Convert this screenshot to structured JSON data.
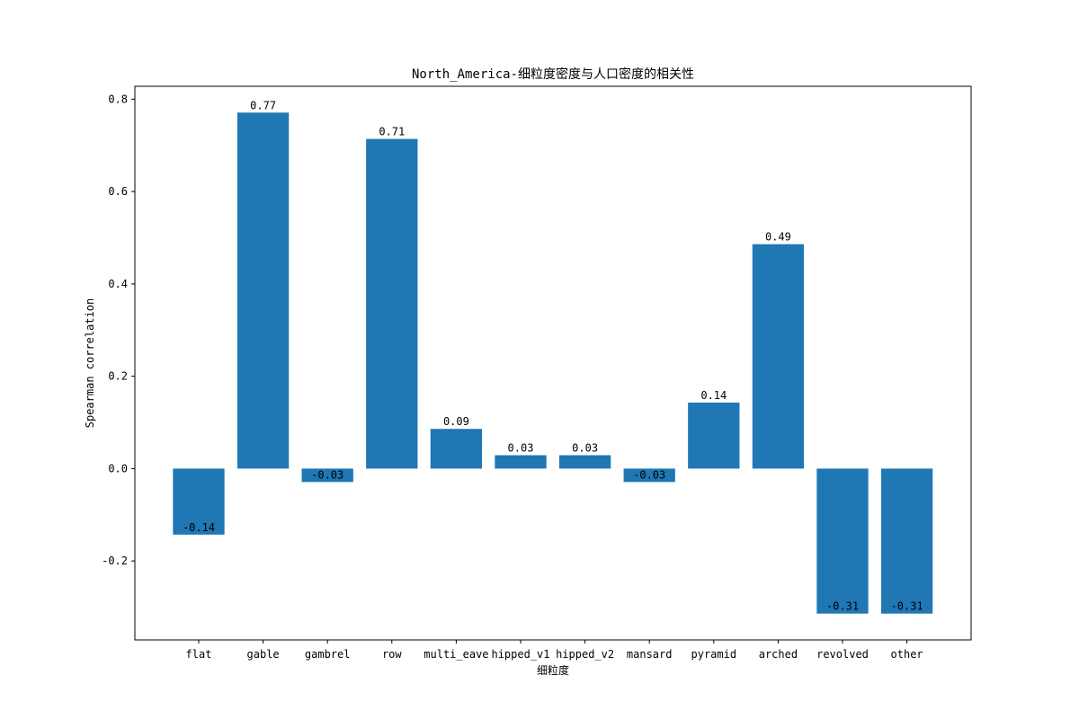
{
  "chart_data": {
    "type": "bar",
    "title": "North_America-细粒度密度与人口密度的相关性",
    "xlabel": "细粒度",
    "ylabel": "Spearman correlation",
    "categories": [
      "flat",
      "gable",
      "gambrel",
      "row",
      "multi_eave",
      "hipped_v1",
      "hipped_v2",
      "mansard",
      "pyramid",
      "arched",
      "revolved",
      "other"
    ],
    "values": [
      -0.143,
      0.771,
      -0.029,
      0.714,
      0.086,
      0.029,
      0.029,
      -0.029,
      0.143,
      0.486,
      -0.314,
      -0.314
    ],
    "value_labels": [
      "-0.14",
      "0.77",
      "-0.03",
      "0.71",
      "0.09",
      "0.03",
      "0.03",
      "-0.03",
      "0.14",
      "0.49",
      "-0.31",
      "-0.31"
    ],
    "yticks": [
      -0.2,
      0.0,
      0.2,
      0.4,
      0.6,
      0.8
    ],
    "ytick_labels": [
      "-0.2",
      "0.0",
      "0.2",
      "0.4",
      "0.6",
      "0.8"
    ],
    "ylim": [
      -0.371,
      0.828
    ],
    "bar_color": "#1f77b4",
    "grid": false,
    "legend": "none"
  }
}
